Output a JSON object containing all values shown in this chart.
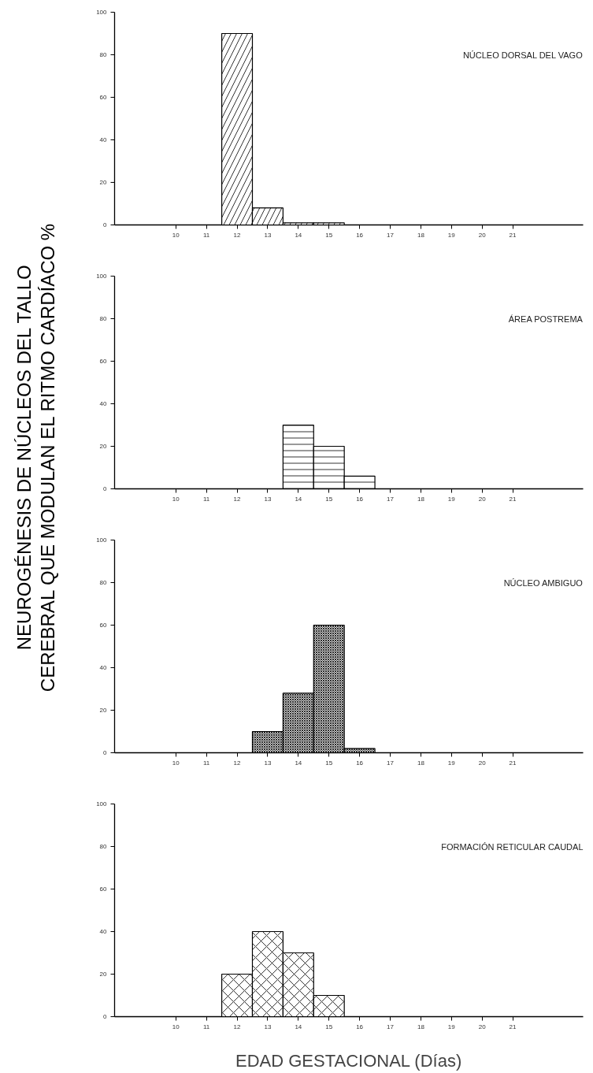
{
  "chart_data": [
    {
      "type": "bar",
      "title": "NÚCLEO DORSAL DEL VAGO",
      "ylabel": "NEUROGÉNESIS DE NÚCLEOS DEL TALLO\nCEREBRAL QUE MODULAN EL RITMO CARDÍACO %",
      "x": [
        12,
        13,
        14,
        15
      ],
      "values": [
        90,
        8,
        1,
        1
      ],
      "color": "#ffffff",
      "xlim": [
        8,
        23.3
      ],
      "xticks": [
        10,
        11,
        12,
        13,
        14,
        15,
        16,
        17,
        18,
        19,
        20,
        21
      ],
      "ylim": [
        0,
        100
      ],
      "yticks": [
        0,
        20,
        40,
        60,
        80,
        100
      ],
      "grid": false
    },
    {
      "type": "bar",
      "title": "ÁREA POSTREMA",
      "x": [
        14,
        15,
        16
      ],
      "values": [
        30,
        20,
        6
      ],
      "color": "#ffffff",
      "xlim": [
        8,
        23.3
      ],
      "xticks": [
        10,
        11,
        12,
        13,
        14,
        15,
        16,
        17,
        18,
        19,
        20,
        21
      ],
      "ylim": [
        0,
        100
      ],
      "yticks": [
        0,
        20,
        40,
        60,
        80,
        100
      ],
      "grid": false
    },
    {
      "type": "bar",
      "title": "NÚCLEO AMBIGUO",
      "x": [
        13,
        14,
        15,
        16
      ],
      "values": [
        10,
        28,
        60,
        2
      ],
      "color": "#d9d9d9",
      "xlim": [
        8,
        23.3
      ],
      "xticks": [
        10,
        11,
        12,
        13,
        14,
        15,
        16,
        17,
        18,
        19,
        20,
        21
      ],
      "ylim": [
        0,
        100
      ],
      "yticks": [
        0,
        20,
        40,
        60,
        80,
        100
      ],
      "grid": false
    },
    {
      "type": "bar",
      "title": "FORMACIÓN RETICULAR CAUDAL",
      "xlabel": "EDAD GESTACIONAL (Días)",
      "x": [
        12,
        13,
        14,
        15
      ],
      "values": [
        20,
        40,
        30,
        10
      ],
      "color": "#ffffff",
      "xlim": [
        8,
        23.3
      ],
      "xticks": [
        10,
        11,
        12,
        13,
        14,
        15,
        16,
        17,
        18,
        19,
        20,
        21
      ],
      "ylim": [
        0,
        100
      ],
      "yticks": [
        0,
        20,
        40,
        60,
        80,
        100
      ],
      "grid": false
    }
  ]
}
